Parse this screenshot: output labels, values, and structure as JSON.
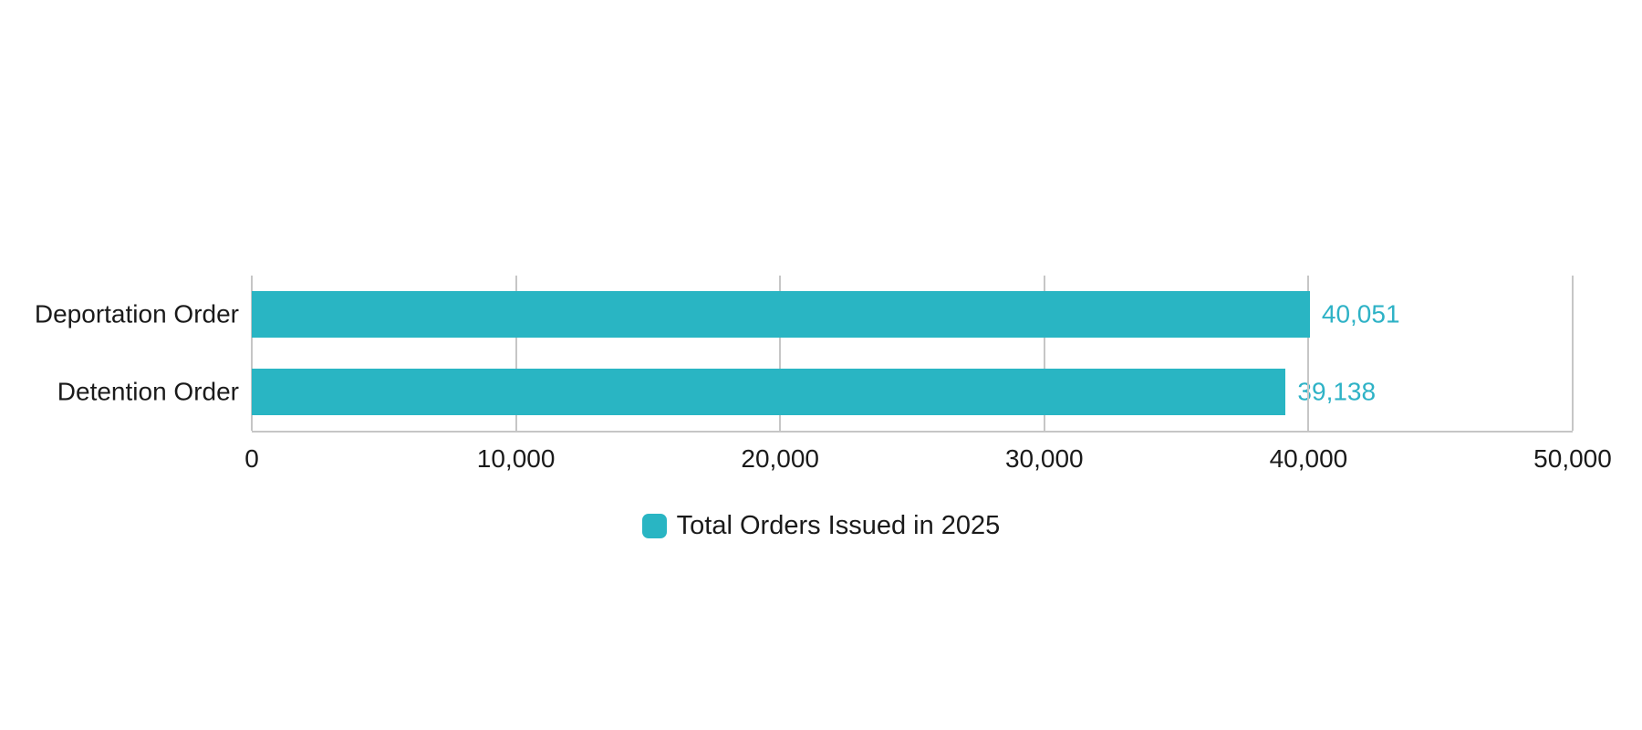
{
  "chart_data": {
    "type": "bar",
    "orientation": "horizontal",
    "title": "",
    "categories": [
      "Deportation Order",
      "Detention Order"
    ],
    "series": [
      {
        "name": "Total Orders Issued in 2025",
        "values": [
          40051,
          39138
        ]
      }
    ],
    "value_labels": [
      "40,051",
      "39,138"
    ],
    "xlabel": "",
    "ylabel": "",
    "xlim": [
      0,
      50000
    ],
    "x_ticks": [
      0,
      10000,
      20000,
      30000,
      40000,
      50000
    ],
    "x_tick_labels": [
      "0",
      "10,000",
      "20,000",
      "30,000",
      "40,000",
      "50,000"
    ],
    "grid": true,
    "legend": {
      "position": "bottom",
      "entries": [
        {
          "label": "Total Orders Issued in 2025",
          "color": "#29b5c3"
        }
      ]
    }
  },
  "colors": {
    "bar": "#29b5c3",
    "value_label": "#2eb2c6",
    "grid": "#c6c6c6",
    "axis": "#c6c6c6",
    "text": "#1a1a1a",
    "background": "#ffffff"
  }
}
